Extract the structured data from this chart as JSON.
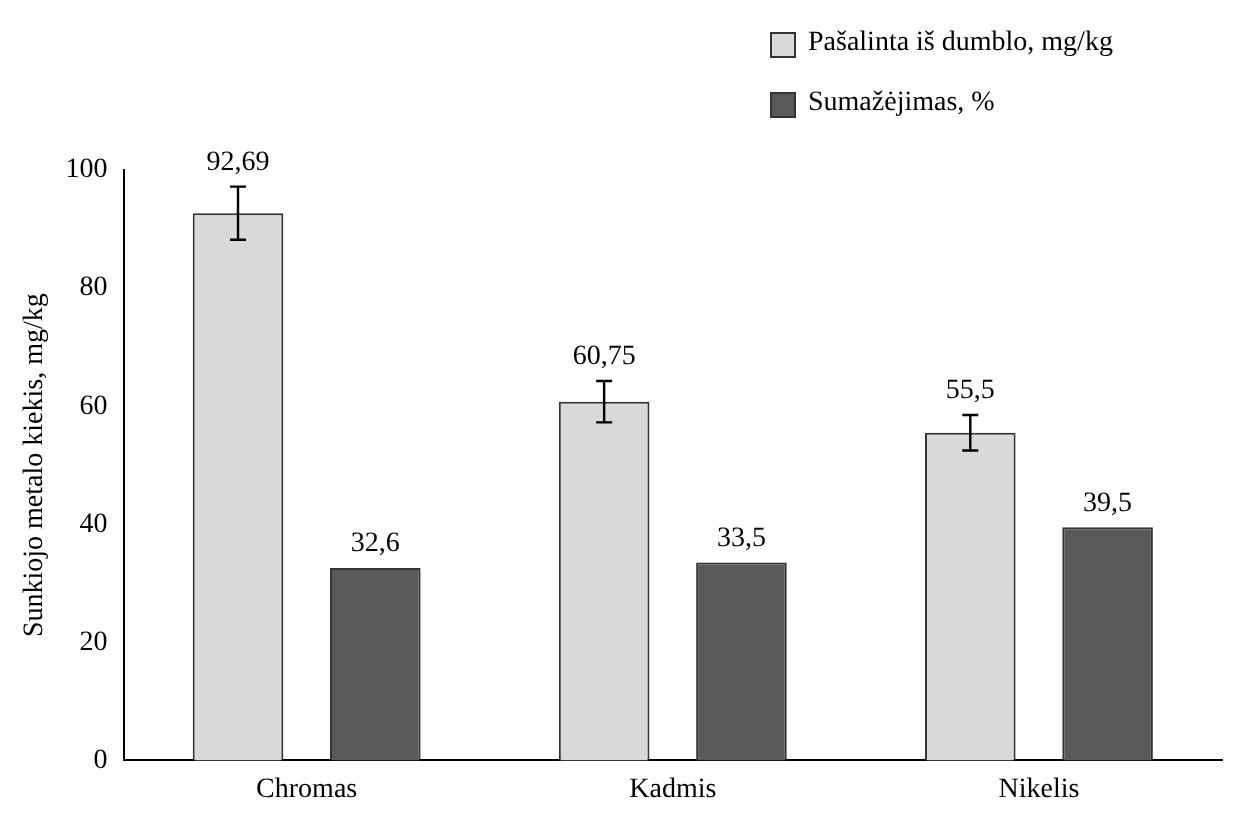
{
  "chart_data": {
    "type": "bar",
    "ylabel": "Sunkiojo metalo kiekis, mg/kg",
    "categories": [
      "Chromas",
      "Kadmis",
      "Nikelis"
    ],
    "series": [
      {
        "name": "Pašalinta iš dumblo, mg/kg",
        "color": "#d9d9d9",
        "values": [
          92.69,
          60.75,
          55.5
        ],
        "errors": [
          4.5,
          3.5,
          3
        ],
        "value_labels": [
          "92,69",
          "60,75",
          "55,5"
        ]
      },
      {
        "name": "Sumažėjimas, %",
        "color": "#595959",
        "values": [
          32.6,
          33.5,
          39.5
        ],
        "value_labels": [
          "32,6",
          "33,5",
          "39,5"
        ]
      }
    ],
    "ylim": [
      0,
      100
    ],
    "yticks": [
      0,
      20,
      40,
      60,
      80,
      100
    ],
    "grid": false,
    "legend": "top right"
  }
}
